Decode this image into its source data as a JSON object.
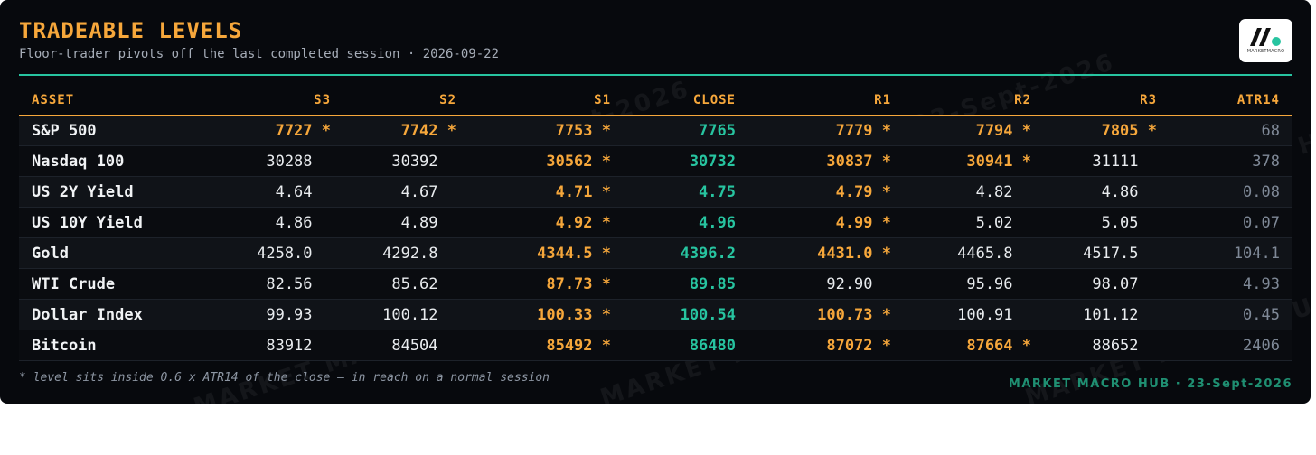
{
  "header": {
    "title": "TRADEABLE LEVELS",
    "subtitle": "Floor-trader pivots off the last completed session · 2026-09-22"
  },
  "logo": {
    "text": "MARKETMACRO"
  },
  "table": {
    "columns": [
      "ASSET",
      "S3",
      "S2",
      "S1",
      "CLOSE",
      "R1",
      "R2",
      "R3",
      "ATR14"
    ],
    "rows": [
      {
        "asset": "S&P 500",
        "cells": [
          "7727 *",
          "7742 *",
          "7753 *",
          "7765",
          "7779 *",
          "7794 *",
          "7805 *",
          "68"
        ]
      },
      {
        "asset": "Nasdaq 100",
        "cells": [
          "30288  ",
          "30392  ",
          "30562 *",
          "30732",
          "30837 *",
          "30941 *",
          "31111  ",
          "378"
        ]
      },
      {
        "asset": "US 2Y Yield",
        "cells": [
          "4.64  ",
          "4.67  ",
          "4.71 *",
          "4.75",
          "4.79 *",
          "4.82  ",
          "4.86  ",
          "0.08"
        ]
      },
      {
        "asset": "US 10Y Yield",
        "cells": [
          "4.86  ",
          "4.89  ",
          "4.92 *",
          "4.96",
          "4.99 *",
          "5.02  ",
          "5.05  ",
          "0.07"
        ]
      },
      {
        "asset": "Gold",
        "cells": [
          "4258.0  ",
          "4292.8  ",
          "4344.5 *",
          "4396.2",
          "4431.0 *",
          "4465.8  ",
          "4517.5  ",
          "104.1"
        ]
      },
      {
        "asset": "WTI Crude",
        "cells": [
          "82.56  ",
          "85.62  ",
          "87.73 *",
          "89.85",
          "92.90  ",
          "95.96  ",
          "98.07  ",
          "4.93"
        ]
      },
      {
        "asset": "Dollar Index",
        "cells": [
          "99.93  ",
          "100.12  ",
          "100.33 *",
          "100.54",
          "100.73 *",
          "100.91  ",
          "101.12  ",
          "0.45"
        ]
      },
      {
        "asset": "Bitcoin",
        "cells": [
          "83912  ",
          "84504  ",
          "85492 *",
          "86480",
          "87072 *",
          "87664 *",
          "88652  ",
          "2406"
        ]
      }
    ]
  },
  "footnote": "* level sits inside 0.6 x ATR14 of the close — in reach on a normal session",
  "brand": "MARKET MACRO HUB · 23-Sept-2026",
  "watermark": {
    "text": "MARKET MACRO HUB · 23-Sept-2026"
  },
  "colors": {
    "accent": "#f6a73b",
    "close": "#27c4a0",
    "background": "#07090d",
    "brand": "#1f8f72"
  }
}
